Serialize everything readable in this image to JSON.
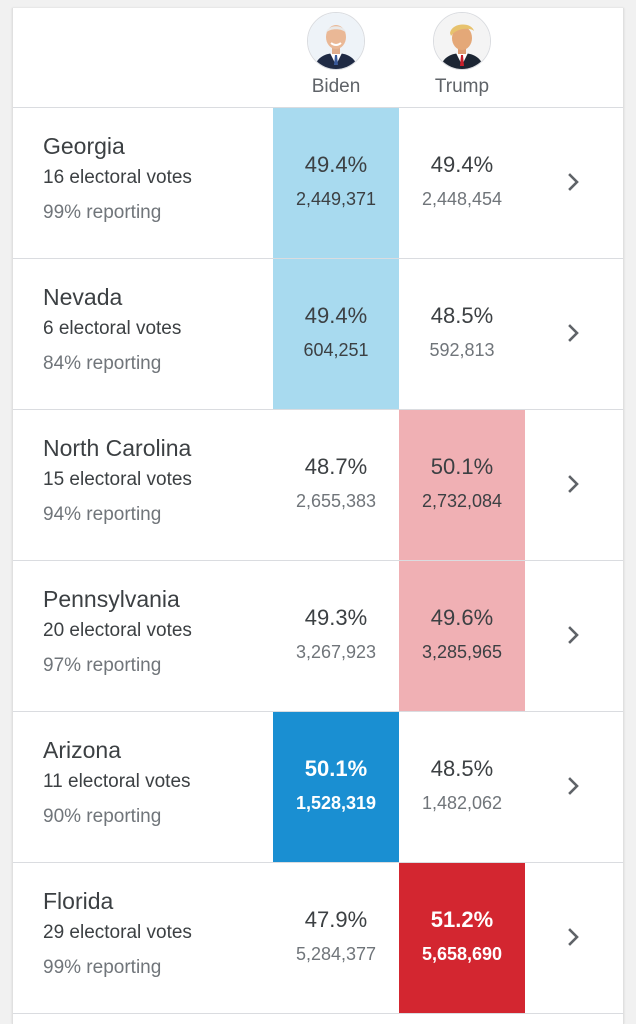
{
  "colors": {
    "dem_light": "#a8daef",
    "dem_dark": "#1a8fd2",
    "rep_light": "#f0b0b4",
    "rep_dark": "#d32630"
  },
  "header": {
    "candidates": [
      {
        "name": "Biden",
        "avatar_icon": "biden-avatar-icon"
      },
      {
        "name": "Trump",
        "avatar_icon": "trump-avatar-icon"
      }
    ]
  },
  "states": [
    {
      "name": "Georgia",
      "electoral": "16 electoral votes",
      "reporting": "99% reporting",
      "biden": {
        "pct": "49.4%",
        "votes": "2,449,371"
      },
      "trump": {
        "pct": "49.4%",
        "votes": "2,448,454"
      },
      "leader": "biden",
      "leader_style": "light"
    },
    {
      "name": "Nevada",
      "electoral": "6 electoral votes",
      "reporting": "84% reporting",
      "biden": {
        "pct": "49.4%",
        "votes": "604,251"
      },
      "trump": {
        "pct": "48.5%",
        "votes": "592,813"
      },
      "leader": "biden",
      "leader_style": "light"
    },
    {
      "name": "North Carolina",
      "electoral": "15 electoral votes",
      "reporting": "94% reporting",
      "biden": {
        "pct": "48.7%",
        "votes": "2,655,383"
      },
      "trump": {
        "pct": "50.1%",
        "votes": "2,732,084"
      },
      "leader": "trump",
      "leader_style": "light"
    },
    {
      "name": "Pennsylvania",
      "electoral": "20 electoral votes",
      "reporting": "97% reporting",
      "biden": {
        "pct": "49.3%",
        "votes": "3,267,923"
      },
      "trump": {
        "pct": "49.6%",
        "votes": "3,285,965"
      },
      "leader": "trump",
      "leader_style": "light"
    },
    {
      "name": "Arizona",
      "electoral": "11 electoral votes",
      "reporting": "90% reporting",
      "biden": {
        "pct": "50.1%",
        "votes": "1,528,319"
      },
      "trump": {
        "pct": "48.5%",
        "votes": "1,482,062"
      },
      "leader": "biden",
      "leader_style": "dark"
    },
    {
      "name": "Florida",
      "electoral": "29 electoral votes",
      "reporting": "99% reporting",
      "biden": {
        "pct": "47.9%",
        "votes": "5,284,377"
      },
      "trump": {
        "pct": "51.2%",
        "votes": "5,658,690"
      },
      "leader": "trump",
      "leader_style": "dark"
    }
  ]
}
